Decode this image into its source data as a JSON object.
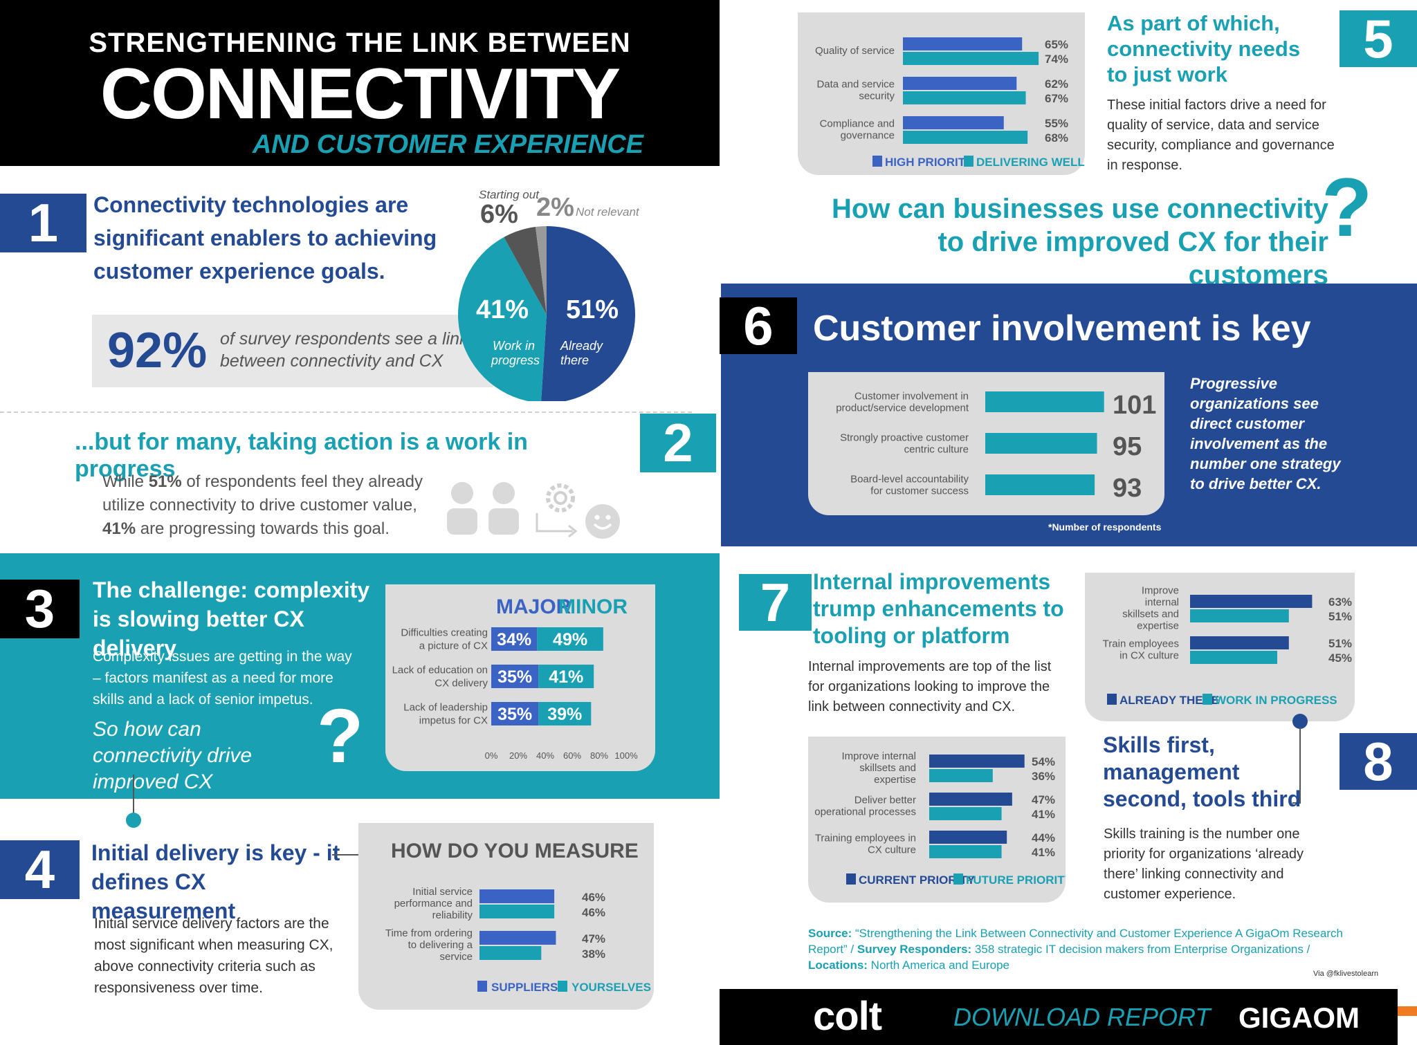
{
  "header": {
    "line1": "STRENGTHENING THE LINK BETWEEN",
    "line2": "CONNECTIVITY",
    "line3": "AND CUSTOMER EXPERIENCE"
  },
  "s1": {
    "num": "1",
    "heading": "Connectivity technologies are significant enablers to achieving customer experience goals.",
    "stat": "92%",
    "stat_text": "of survey respondents see a link between connectivity and CX"
  },
  "s2": {
    "num": "2",
    "heading": "...but for many, taking action is a work in progress",
    "body_a": "While ",
    "body_b": "51%",
    "body_c": " of respondents feel they already utilize connectivity to drive customer value, ",
    "body_d": "41%",
    "body_e": " are progressing towards this goal."
  },
  "s3": {
    "num": "3",
    "heading": "The challenge: complexity is slowing better CX delivery",
    "body": "Complexity issues are getting in the way – factors manifest as a need for more skills and a lack of senior impetus.",
    "question": "So how can connectivity drive improved CX",
    "qmark": "?"
  },
  "s4": {
    "num": "4",
    "heading": "Initial delivery is key - it defines CX measurement",
    "body": "Initial service delivery factors are the most significant when measuring CX, above connectivity criteria such as responsiveness over time."
  },
  "s5": {
    "num": "5",
    "heading": "As part of which, connectivity needs to just work",
    "body": "These initial factors drive a need for quality of service, data and service security, compliance and governance in response.",
    "question": "How can businesses use connectivity to drive improved CX for their customers",
    "qmark": "?"
  },
  "s6": {
    "num": "6",
    "heading": "Customer involvement is key",
    "side": "Progressive organizations see direct customer involvement as the number one strategy to drive better CX.",
    "note": "*Number of respondents"
  },
  "s7": {
    "num": "7",
    "heading": "Internal improvements trump enhancements to tooling or platform",
    "body": "Internal improvements are top of the list for organizations looking to improve the link between connectivity and CX."
  },
  "s8": {
    "num": "8",
    "heading": "Skills first, management second, tools third",
    "body": "Skills training is the number one priority for organizations ‘already there’ linking connectivity and customer experience."
  },
  "footer": {
    "source_k": "Source:",
    "source_v": " “Strengthening the Link Between Connectivity and Customer Experience A GigaOm Research Report”  /  ",
    "resp_k": "Survey Responders:",
    "resp_v": " 358 strategic IT decision makers from Enterprise Organizations  /",
    "loc_k": "Locations:",
    "loc_v": " North America and Europe",
    "via": "Via @fklivestolearn",
    "colt": "colt",
    "download": "DOWNLOAD REPORT",
    "gigaom": "GIGAOM"
  },
  "icons": {
    "people": "people-icon",
    "gear": "gear-icon",
    "arrow": "arrow-icon",
    "smiley": "smiley-icon"
  },
  "colors": {
    "navy": "#234a93",
    "teal": "#1aa0b3",
    "blue": "#3a63c4",
    "pie_navy": "#234a93",
    "pie_teal": "#1aa0b3",
    "pie_dark": "#555555",
    "pie_gray": "#9a9a9a"
  },
  "chart_data": [
    {
      "id": "pie",
      "type": "pie",
      "slices": [
        {
          "label": "Already there",
          "value": 51,
          "value_label": "51%"
        },
        {
          "label": "Work in progress",
          "value": 41,
          "value_label": "41%"
        },
        {
          "label": "Starting out",
          "value": 6,
          "value_label": "6%"
        },
        {
          "label": "Not relevant",
          "value": 2,
          "value_label": "2%"
        }
      ]
    },
    {
      "id": "challenge",
      "type": "bar",
      "stacked": true,
      "orientation": "horizontal",
      "legend": [
        "MAJOR",
        "MINOR"
      ],
      "categories": [
        "Difficulties creating a picture of CX",
        "Lack of education on CX delivery",
        "Lack of leadership impetus for CX"
      ],
      "series": [
        {
          "name": "MAJOR",
          "values": [
            34,
            35,
            35
          ]
        },
        {
          "name": "MINOR",
          "values": [
            49,
            41,
            39
          ]
        }
      ],
      "xlim": [
        0,
        100
      ],
      "xticks": [
        "0%",
        "20%",
        "40%",
        "60%",
        "80%",
        "100%"
      ]
    },
    {
      "id": "measure",
      "type": "bar",
      "orientation": "horizontal",
      "title": "HOW DO YOU MEASURE",
      "categories": [
        "Initial service performance and reliability",
        "Time from ordering to delivering a service"
      ],
      "series": [
        {
          "name": "SUPPLIERS",
          "values": [
            46,
            47
          ]
        },
        {
          "name": "YOURSELVES",
          "values": [
            46,
            38
          ]
        }
      ]
    },
    {
      "id": "quality",
      "type": "bar",
      "orientation": "horizontal",
      "categories": [
        "Quality of service",
        "Data and service security",
        "Compliance and governance"
      ],
      "series": [
        {
          "name": "HIGH PRIORITY",
          "values": [
            65,
            62,
            55
          ]
        },
        {
          "name": "DELIVERING WELL",
          "values": [
            74,
            67,
            68
          ]
        }
      ]
    },
    {
      "id": "involvement",
      "type": "bar",
      "orientation": "horizontal",
      "categories": [
        "Customer involvement in product/service development",
        "Strongly proactive customer centric culture",
        "Board-level accountability for customer success"
      ],
      "values": [
        101,
        95,
        93
      ]
    },
    {
      "id": "internal",
      "type": "bar",
      "orientation": "horizontal",
      "categories": [
        "Improve internal skillsets and expertise",
        "Deliver better operational processes",
        "Training employees in CX culture"
      ],
      "series": [
        {
          "name": "CURRENT PRIORITY",
          "values": [
            54,
            47,
            44
          ]
        },
        {
          "name": "FUTURE PRIORITY",
          "values": [
            36,
            41,
            41
          ]
        }
      ]
    },
    {
      "id": "skills",
      "type": "bar",
      "orientation": "horizontal",
      "categories": [
        "Improve internal skillsets and expertise",
        "Train employees in CX culture"
      ],
      "series": [
        {
          "name": "ALREADY THERE",
          "values": [
            63,
            51
          ]
        },
        {
          "name": "WORK IN PROGRESS",
          "values": [
            51,
            45
          ]
        }
      ]
    }
  ]
}
